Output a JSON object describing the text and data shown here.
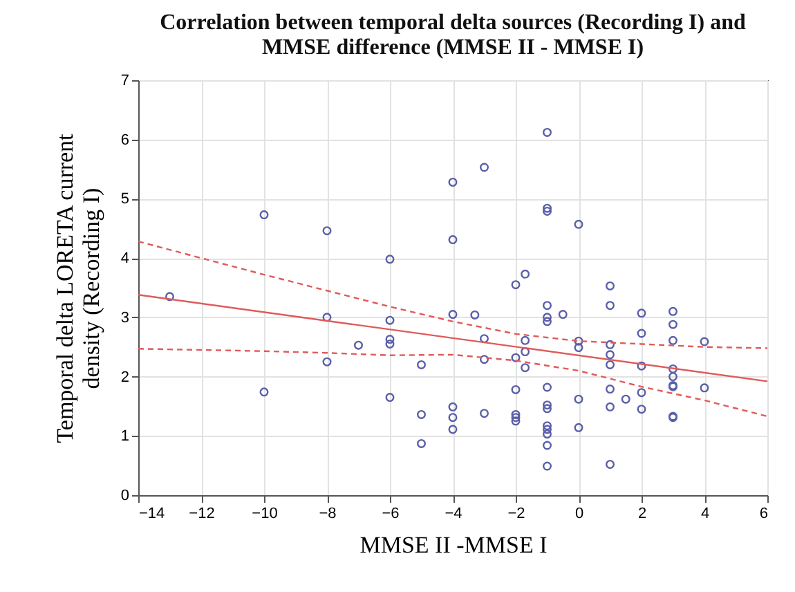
{
  "chart_data": {
    "type": "scatter",
    "title": "Correlation between temporal delta sources (Recording I) and MMSE difference (MMSE II - MMSE I)",
    "xlabel": "MMSE II -MMSE I",
    "ylabel": "Temporal delta LORETA current density (Recording I)",
    "xlim": [
      -14,
      6
    ],
    "xticks": [
      -14,
      -12,
      -10,
      -8,
      -6,
      -4,
      -2,
      0,
      2,
      4,
      6
    ],
    "ylim": [
      0,
      7
    ],
    "yticks": [
      0,
      1,
      2,
      3,
      4,
      5,
      6,
      7
    ],
    "grid": true,
    "marker": "circle",
    "series": [
      {
        "color": "#5a5fa8",
        "x": [
          -13,
          -10,
          -10,
          -8,
          -8,
          -8,
          -7,
          -6,
          -6,
          -6,
          -6,
          -6,
          -5,
          -5,
          -5,
          -4,
          -4,
          -4,
          -4,
          -4,
          -4,
          -3.3,
          -3,
          -3,
          -3,
          -3,
          -2,
          -1.7,
          -1.7,
          -1.7,
          -1.7,
          -2,
          -2,
          -2,
          -2,
          -2,
          -1,
          -1,
          -1,
          -1,
          -1,
          -1,
          -1,
          -1,
          -1,
          -1,
          -1,
          -1,
          -1,
          -1,
          -0.5,
          0,
          0,
          0,
          0,
          0,
          1,
          1,
          1,
          1,
          1,
          1,
          1,
          1,
          1.5,
          2,
          2,
          2,
          2,
          2,
          3,
          3,
          3,
          3,
          3,
          3,
          3,
          3,
          3,
          4,
          4
        ],
        "values": [
          3.35,
          4.73,
          1.74,
          4.46,
          3.0,
          2.25,
          2.53,
          3.98,
          2.95,
          2.63,
          2.55,
          1.65,
          2.2,
          1.36,
          0.87,
          5.28,
          4.31,
          3.05,
          1.49,
          1.31,
          1.11,
          3.04,
          5.53,
          2.64,
          2.29,
          1.38,
          3.55,
          3.73,
          2.61,
          2.42,
          2.15,
          2.32,
          1.78,
          1.36,
          1.31,
          1.25,
          6.12,
          4.84,
          4.79,
          3.2,
          3.0,
          2.93,
          1.82,
          1.52,
          1.46,
          1.17,
          1.11,
          1.03,
          0.84,
          0.49,
          3.05,
          4.57,
          2.6,
          2.49,
          1.62,
          1.14,
          3.53,
          3.2,
          2.54,
          2.37,
          2.2,
          1.79,
          1.49,
          0.52,
          1.62,
          3.07,
          2.73,
          2.18,
          1.73,
          1.45,
          3.1,
          2.88,
          2.61,
          2.13,
          2.0,
          1.85,
          1.83,
          1.33,
          1.31,
          2.59,
          1.81
        ]
      },
      {
        "type": "line",
        "color": "#e05a5a",
        "line_style": "solid",
        "marker": "none",
        "x": [
          -14,
          6
        ],
        "values": [
          3.38,
          1.92
        ]
      },
      {
        "type": "line",
        "color": "#e05a5a",
        "line_style": "dashed",
        "marker": "none",
        "x": [
          -14,
          -10,
          -8,
          -6,
          -4,
          -2,
          0,
          2,
          4,
          6
        ],
        "values": [
          4.28,
          3.72,
          3.45,
          3.18,
          2.93,
          2.72,
          2.6,
          2.55,
          2.5,
          2.48
        ]
      },
      {
        "type": "line",
        "color": "#e05a5a",
        "line_style": "dashed",
        "marker": "none",
        "x": [
          -14,
          -10,
          -8,
          -6,
          -4,
          -2,
          0,
          2,
          4,
          6
        ],
        "values": [
          2.47,
          2.43,
          2.4,
          2.36,
          2.37,
          2.27,
          2.1,
          1.83,
          1.6,
          1.33
        ]
      }
    ]
  }
}
